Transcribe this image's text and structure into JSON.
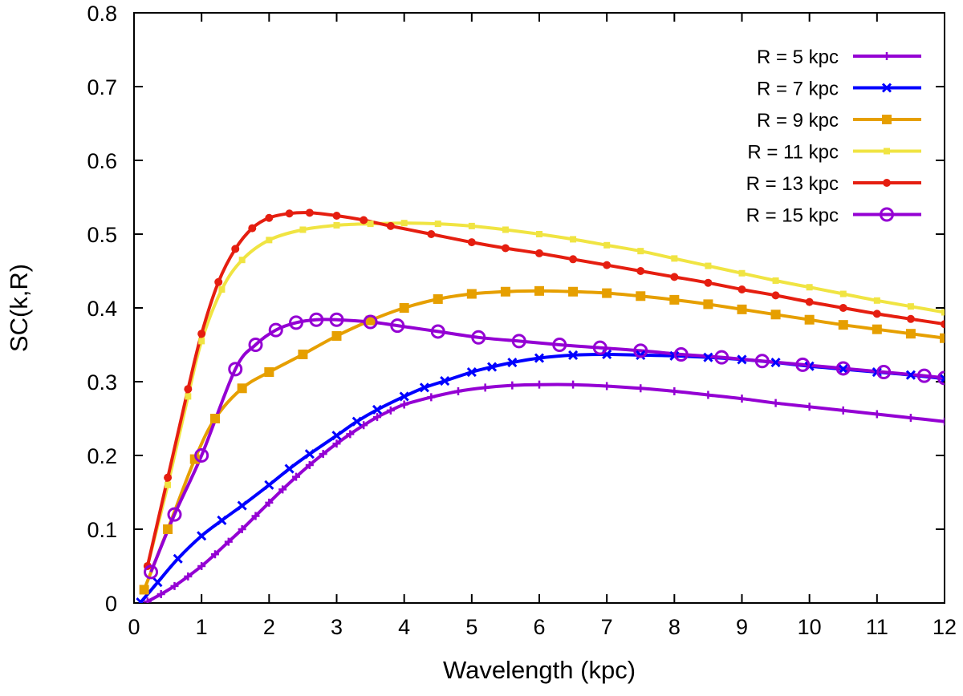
{
  "chart_data": {
    "type": "line",
    "title": "",
    "xlabel": "Wavelength (kpc)",
    "ylabel": "SC(k,R)",
    "xlim": [
      0,
      12
    ],
    "ylim": [
      0,
      0.8
    ],
    "xticks": [
      0,
      1,
      2,
      3,
      4,
      5,
      6,
      7,
      8,
      9,
      10,
      11,
      12
    ],
    "yticks": [
      0,
      0.1,
      0.2,
      0.3,
      0.4,
      0.5,
      0.6,
      0.7,
      0.8
    ],
    "xtick_labels": [
      "0",
      "1",
      "2",
      "3",
      "4",
      "5",
      "6",
      "7",
      "8",
      "9",
      "10",
      "11",
      "12"
    ],
    "ytick_labels": [
      "0",
      "0.1",
      "0.2",
      "0.3",
      "0.4",
      "0.5",
      "0.6",
      "0.7",
      "0.8"
    ],
    "legend_position": "top-right",
    "series": [
      {
        "name": "R = 5 kpc",
        "color": "#9400d3",
        "marker": "plus",
        "x": [
          0.2,
          0.4,
          0.6,
          0.8,
          1.0,
          1.2,
          1.4,
          1.6,
          1.8,
          2.0,
          2.2,
          2.4,
          2.6,
          2.8,
          3.0,
          3.2,
          3.4,
          3.6,
          3.8,
          4.0,
          4.4,
          4.8,
          5.2,
          5.6,
          6.0,
          6.5,
          7.0,
          7.5,
          8.0,
          8.5,
          9.0,
          9.5,
          10.0,
          10.5,
          11.0,
          11.5,
          12.0
        ],
        "y": [
          0.002,
          0.012,
          0.023,
          0.036,
          0.05,
          0.066,
          0.083,
          0.1,
          0.118,
          0.136,
          0.154,
          0.171,
          0.187,
          0.202,
          0.216,
          0.229,
          0.241,
          0.252,
          0.261,
          0.269,
          0.279,
          0.287,
          0.292,
          0.295,
          0.296,
          0.296,
          0.294,
          0.291,
          0.287,
          0.282,
          0.277,
          0.271,
          0.266,
          0.261,
          0.256,
          0.251,
          0.246
        ]
      },
      {
        "name": "R = 7 kpc",
        "color": "#0000ff",
        "marker": "cross",
        "x": [
          0.1,
          0.35,
          0.65,
          1.0,
          1.3,
          1.6,
          2.0,
          2.3,
          2.6,
          3.0,
          3.3,
          3.6,
          4.0,
          4.3,
          4.6,
          5.0,
          5.3,
          5.6,
          6.0,
          6.5,
          7.0,
          7.5,
          8.0,
          8.5,
          9.0,
          9.5,
          10.0,
          10.5,
          11.0,
          11.5,
          12.0
        ],
        "y": [
          0.001,
          0.028,
          0.06,
          0.091,
          0.112,
          0.132,
          0.16,
          0.182,
          0.202,
          0.227,
          0.246,
          0.262,
          0.28,
          0.292,
          0.301,
          0.313,
          0.32,
          0.326,
          0.332,
          0.336,
          0.337,
          0.336,
          0.335,
          0.333,
          0.33,
          0.326,
          0.321,
          0.317,
          0.313,
          0.309,
          0.304
        ]
      },
      {
        "name": "R = 9 kpc",
        "color": "#e69f00",
        "marker": "square",
        "x": [
          0.15,
          0.5,
          0.9,
          1.2,
          1.6,
          2.0,
          2.5,
          3.0,
          3.5,
          4.0,
          4.5,
          5.0,
          5.5,
          6.0,
          6.5,
          7.0,
          7.5,
          8.0,
          8.5,
          9.0,
          9.5,
          10.0,
          10.5,
          11.0,
          11.5,
          12.0
        ],
        "y": [
          0.018,
          0.1,
          0.195,
          0.25,
          0.291,
          0.313,
          0.337,
          0.362,
          0.383,
          0.4,
          0.412,
          0.419,
          0.422,
          0.423,
          0.422,
          0.42,
          0.416,
          0.411,
          0.405,
          0.398,
          0.391,
          0.384,
          0.377,
          0.371,
          0.365,
          0.359
        ]
      },
      {
        "name": "R = 11 kpc",
        "color": "#f0e442",
        "marker": "square-small",
        "x": [
          0.2,
          0.5,
          0.8,
          1.0,
          1.3,
          1.6,
          2.0,
          2.5,
          3.0,
          3.5,
          4.0,
          4.5,
          5.0,
          5.5,
          6.0,
          6.5,
          7.0,
          7.5,
          8.0,
          8.5,
          9.0,
          9.5,
          10.0,
          10.5,
          11.0,
          11.5,
          12.0
        ],
        "y": [
          0.05,
          0.16,
          0.28,
          0.355,
          0.425,
          0.465,
          0.492,
          0.506,
          0.512,
          0.514,
          0.515,
          0.514,
          0.511,
          0.506,
          0.5,
          0.493,
          0.485,
          0.477,
          0.467,
          0.457,
          0.447,
          0.437,
          0.428,
          0.419,
          0.41,
          0.402,
          0.394
        ]
      },
      {
        "name": "R = 13 kpc",
        "color": "#e51e10",
        "marker": "circle-filled",
        "x": [
          0.2,
          0.5,
          0.8,
          1.0,
          1.25,
          1.5,
          1.75,
          2.0,
          2.3,
          2.6,
          3.0,
          3.4,
          3.8,
          4.4,
          5.0,
          5.5,
          6.0,
          6.5,
          7.0,
          7.5,
          8.0,
          8.5,
          9.0,
          9.5,
          10.0,
          10.5,
          11.0,
          11.5,
          12.0
        ],
        "y": [
          0.05,
          0.17,
          0.29,
          0.365,
          0.435,
          0.48,
          0.508,
          0.522,
          0.528,
          0.529,
          0.525,
          0.519,
          0.511,
          0.5,
          0.489,
          0.481,
          0.474,
          0.466,
          0.458,
          0.45,
          0.442,
          0.434,
          0.425,
          0.417,
          0.408,
          0.4,
          0.392,
          0.385,
          0.378
        ]
      },
      {
        "name": "R = 15 kpc",
        "color": "#9400d3",
        "marker": "circle-open",
        "x": [
          0.25,
          0.6,
          1.0,
          1.5,
          1.8,
          2.1,
          2.4,
          2.7,
          3.0,
          3.5,
          3.9,
          4.5,
          5.1,
          5.7,
          6.3,
          6.9,
          7.5,
          8.1,
          8.7,
          9.3,
          9.9,
          10.5,
          11.1,
          11.7,
          12.0
        ],
        "y": [
          0.042,
          0.12,
          0.2,
          0.317,
          0.35,
          0.37,
          0.38,
          0.384,
          0.384,
          0.381,
          0.376,
          0.368,
          0.36,
          0.355,
          0.35,
          0.346,
          0.342,
          0.337,
          0.333,
          0.328,
          0.323,
          0.318,
          0.313,
          0.308,
          0.305
        ]
      }
    ]
  }
}
